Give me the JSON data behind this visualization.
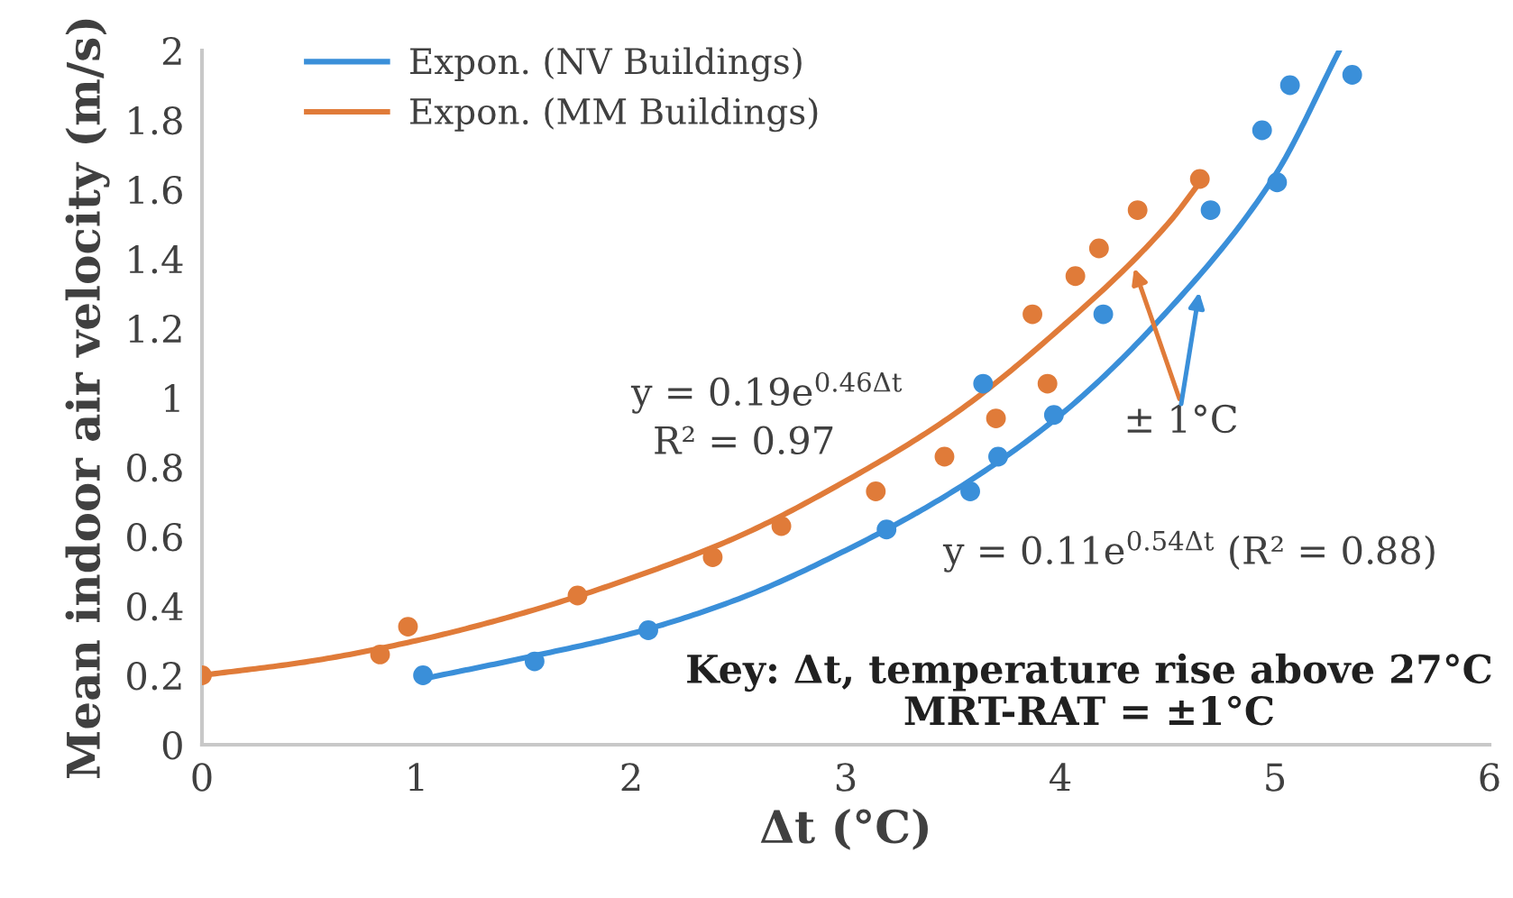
{
  "chart_data": {
    "type": "scatter",
    "xlabel": "Δt (°C)",
    "ylabel": "Mean indoor air velocity (m/s)",
    "xlim": [
      0,
      6
    ],
    "ylim": [
      0,
      2
    ],
    "xticks": [
      0,
      1,
      2,
      3,
      4,
      5,
      6
    ],
    "yticks": [
      0,
      0.2,
      0.4,
      0.6,
      0.8,
      1,
      1.2,
      1.4,
      1.6,
      1.8,
      2
    ],
    "legend": "top left",
    "marker": "circle",
    "series": [
      {
        "type": "line",
        "marker": "none",
        "name": "Expon. (NV Buildings)",
        "color": "#3a8fd9",
        "x": [
          1.03,
          1.5,
          2.0,
          2.5,
          3.0,
          3.5,
          4.0,
          4.5,
          5.0,
          5.3
        ],
        "values": [
          0.19,
          0.25,
          0.32,
          0.42,
          0.56,
          0.73,
          0.95,
          1.25,
          1.64,
          2.0
        ]
      },
      {
        "type": "line",
        "marker": "none",
        "name": "Expon. (MM Buildings)",
        "color": "#e07b39",
        "x": [
          0,
          0.5,
          1.0,
          1.5,
          2.0,
          2.5,
          3.0,
          3.5,
          4.0,
          4.5,
          4.65
        ],
        "values": [
          0.2,
          0.24,
          0.3,
          0.38,
          0.48,
          0.6,
          0.76,
          0.95,
          1.2,
          1.5,
          1.62
        ]
      },
      {
        "color": "#3a8fd9",
        "x": [
          1.03,
          1.55,
          2.08,
          3.19,
          3.58,
          3.71,
          3.97,
          3.64,
          4.2,
          4.7,
          5.01,
          4.94,
          5.07,
          5.36
        ],
        "values": [
          0.2,
          0.24,
          0.33,
          0.62,
          0.73,
          0.83,
          0.95,
          1.04,
          1.24,
          1.54,
          1.62,
          1.77,
          1.9,
          1.93
        ]
      },
      {
        "color": "#e07b39",
        "x": [
          0,
          0.83,
          0.96,
          1.75,
          2.38,
          2.7,
          3.14,
          3.46,
          3.7,
          3.94,
          3.87,
          4.07,
          4.18,
          4.36,
          4.65
        ],
        "values": [
          0.2,
          0.26,
          0.34,
          0.43,
          0.54,
          0.63,
          0.73,
          0.83,
          0.94,
          1.04,
          1.24,
          1.35,
          1.43,
          1.54,
          1.63
        ]
      }
    ],
    "annotations": [
      "y = 0.19e$^{0.46Δt}$",
      "R² = 0.97",
      {
        "text": "± 1°C",
        "x": 4.34,
        "y": 1.38
      },
      "y = 0.11e$^{0.54Δt}$ (R² = 0.88)",
      "Key: Δt, temperature rise above 27°C",
      "MRT-RAT = ±1°C"
    ]
  }
}
